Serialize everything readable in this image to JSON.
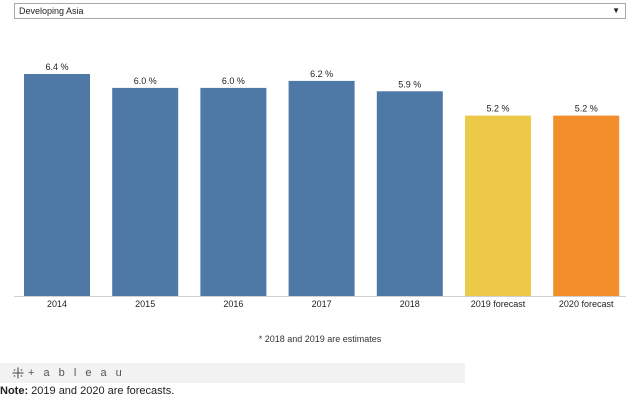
{
  "selector": {
    "selected": "Developing Asia"
  },
  "chart_data": {
    "type": "bar",
    "categories": [
      "2014",
      "2015",
      "2016",
      "2017",
      "2018",
      "2019 forecast",
      "2020 forecast"
    ],
    "values": [
      6.4,
      6.0,
      6.0,
      6.2,
      5.9,
      5.2,
      5.2
    ],
    "data_labels": [
      "6.4 %",
      "6.0 %",
      "6.0 %",
      "6.2 %",
      "5.9 %",
      "5.2 %",
      "5.2 %"
    ],
    "colors": [
      "#4e79a7",
      "#4e79a7",
      "#4e79a7",
      "#4e79a7",
      "#4e79a7",
      "#edc948",
      "#f28e2b"
    ],
    "ylim": [
      0,
      6.4
    ],
    "grid": false
  },
  "footnote": "* 2018 and 2019 are estimates",
  "tableau": {
    "text": "+ a b l e a u"
  },
  "note": {
    "label": "Note:",
    "text": " 2019 and 2020 are forecasts."
  }
}
